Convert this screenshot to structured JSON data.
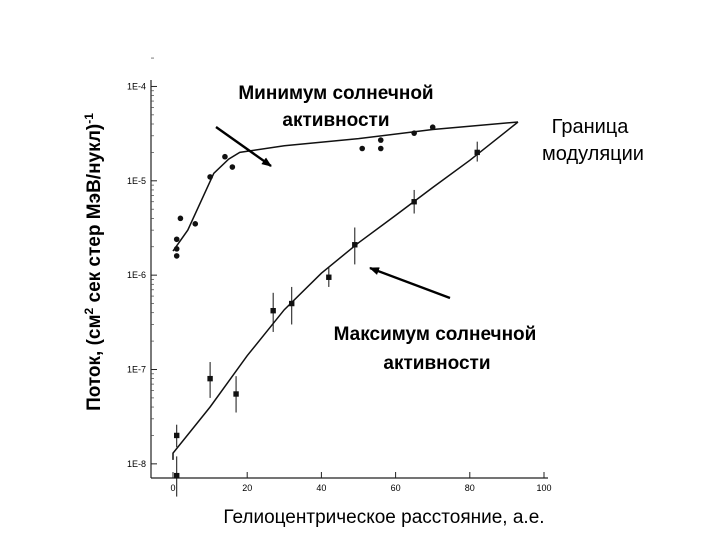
{
  "chart_data": {
    "type": "scatter",
    "title": "",
    "xlabel": "Гелиоцентрическое расстояние, а.е.",
    "ylabel": "Поток, (см",
    "ylabel_sup": "2",
    "ylabel_rest": " сек стер МэВ/нукл)",
    "ylabel_power": "-1",
    "xlim": [
      0,
      100
    ],
    "ylim_log10": [
      -8.15,
      -3.55
    ],
    "y_scale": "log",
    "grid": false,
    "x_ticks": [
      {
        "value": 0,
        "label": "0"
      },
      {
        "value": 20,
        "label": "20"
      },
      {
        "value": 40,
        "label": "40"
      },
      {
        "value": 60,
        "label": "60"
      },
      {
        "value": 80,
        "label": "80"
      },
      {
        "value": 100,
        "label": "100"
      }
    ],
    "y_ticks": [
      {
        "value": 0.0001,
        "label": "1E-4"
      },
      {
        "value": 1e-05,
        "label": "1E-5"
      },
      {
        "value": 1e-06,
        "label": "1E-6"
      },
      {
        "value": 1e-07,
        "label": "1E-7"
      },
      {
        "value": 1e-08,
        "label": "1E-8"
      }
    ],
    "series": [
      {
        "marker": "circle",
        "points": [
          {
            "x": 1,
            "y": 1.6e-06
          },
          {
            "x": 1,
            "y": 1.9e-06
          },
          {
            "x": 1,
            "y": 2.4e-06
          },
          {
            "x": 2,
            "y": 4e-06
          },
          {
            "x": 6,
            "y": 3.5e-06
          },
          {
            "x": 10,
            "y": 1.1e-05
          },
          {
            "x": 14,
            "y": 1.8e-05
          },
          {
            "x": 16,
            "y": 1.4e-05
          },
          {
            "x": 51,
            "y": 2.2e-05
          },
          {
            "x": 56,
            "y": 2.2e-05
          },
          {
            "x": 56,
            "y": 2.7e-05
          },
          {
            "x": 65,
            "y": 3.2e-05
          },
          {
            "x": 70,
            "y": 3.7e-05
          }
        ],
        "fit": [
          {
            "x": 0,
            "y": 1.8e-06
          },
          {
            "x": 4,
            "y": 3e-06
          },
          {
            "x": 11,
            "y": 1.2e-05
          },
          {
            "x": 15,
            "y": 1.7e-05
          },
          {
            "x": 18,
            "y": 2e-05
          },
          {
            "x": 30,
            "y": 2.35e-05
          },
          {
            "x": 50,
            "y": 2.8e-05
          },
          {
            "x": 70,
            "y": 3.5e-05
          },
          {
            "x": 93,
            "y": 4.2e-05
          }
        ]
      },
      {
        "marker": "square",
        "points": [
          {
            "x": 1,
            "y": 2e-08,
            "err_lo": 1.5e-08,
            "err_hi": 2.6e-08
          },
          {
            "x": 1,
            "y": 7.5e-09,
            "err_lo": 4.5e-09,
            "err_hi": 1.2e-08
          },
          {
            "x": 10,
            "y": 8e-08,
            "err_lo": 5e-08,
            "err_hi": 1.2e-07
          },
          {
            "x": 17,
            "y": 5.5e-08,
            "err_lo": 3.5e-08,
            "err_hi": 8.5e-08
          },
          {
            "x": 27,
            "y": 4.2e-07,
            "err_lo": 2.5e-07,
            "err_hi": 6.5e-07
          },
          {
            "x": 32,
            "y": 5e-07,
            "err_lo": 3e-07,
            "err_hi": 7.5e-07
          },
          {
            "x": 42,
            "y": 9.5e-07,
            "err_lo": 7.5e-07,
            "err_hi": 1.2e-06
          },
          {
            "x": 49,
            "y": 2.1e-06,
            "err_lo": 1.3e-06,
            "err_hi": 3.2e-06
          },
          {
            "x": 65,
            "y": 6e-06,
            "err_lo": 4.5e-06,
            "err_hi": 8e-06
          },
          {
            "x": 82,
            "y": 2e-05,
            "err_lo": 1.6e-05,
            "err_hi": 2.6e-05
          }
        ],
        "fit": [
          {
            "x": 0,
            "y": 1.1e-08
          },
          {
            "x": 0,
            "y": 1.3e-08
          },
          {
            "x": 10,
            "y": 4e-08
          },
          {
            "x": 20,
            "y": 1.4e-07
          },
          {
            "x": 30,
            "y": 4.3e-07
          },
          {
            "x": 40,
            "y": 1.05e-06
          },
          {
            "x": 50,
            "y": 2.2e-06
          },
          {
            "x": 60,
            "y": 4.3e-06
          },
          {
            "x": 70,
            "y": 8.5e-06
          },
          {
            "x": 80,
            "y": 1.65e-05
          },
          {
            "x": 93,
            "y": 4.2e-05
          }
        ]
      }
    ],
    "annotations": {
      "min_line1": "Минимум солнечной",
      "min_line2": "активности",
      "max_line1": "Максимум солнечной",
      "max_line2": "активности",
      "boundary_line1": "Граница",
      "boundary_line2": "модуляции"
    }
  }
}
